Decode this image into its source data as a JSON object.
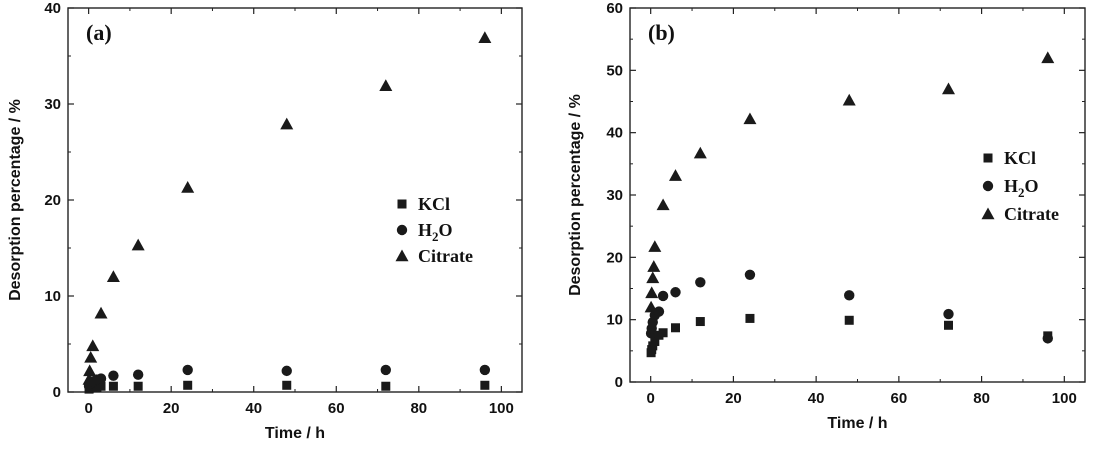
{
  "chart_data": [
    {
      "type": "scatter",
      "panel_label": "(a)",
      "xlabel": "Time / h",
      "ylabel": "Desorption percentage / %",
      "xlim": [
        -5,
        105
      ],
      "ylim": [
        0,
        40
      ],
      "xticks": [
        0,
        20,
        40,
        60,
        80,
        100
      ],
      "yticks": [
        0,
        10,
        20,
        30,
        40
      ],
      "legend_position": "right",
      "series": [
        {
          "name": "KCl",
          "sub": "",
          "after": "",
          "marker": "square",
          "points": [
            [
              0.1,
              0.3
            ],
            [
              0.25,
              0.4
            ],
            [
              0.5,
              0.5
            ],
            [
              1,
              0.5
            ],
            [
              2,
              0.5
            ],
            [
              3,
              0.6
            ],
            [
              6,
              0.6
            ],
            [
              12,
              0.6
            ],
            [
              24,
              0.7
            ],
            [
              48,
              0.7
            ],
            [
              72,
              0.6
            ],
            [
              96,
              0.7
            ]
          ]
        },
        {
          "name": "H",
          "sub": "2",
          "after": "O",
          "marker": "circle",
          "points": [
            [
              0.1,
              0.6
            ],
            [
              0.25,
              0.8
            ],
            [
              0.5,
              0.9
            ],
            [
              1,
              1.1
            ],
            [
              2,
              1.3
            ],
            [
              3,
              1.4
            ],
            [
              6,
              1.7
            ],
            [
              12,
              1.8
            ],
            [
              24,
              2.3
            ],
            [
              48,
              2.2
            ],
            [
              72,
              2.3
            ],
            [
              96,
              2.3
            ]
          ]
        },
        {
          "name": "Citrate",
          "sub": "",
          "after": "",
          "marker": "triangle",
          "points": [
            [
              0.1,
              1.3
            ],
            [
              0.25,
              2.2
            ],
            [
              0.5,
              3.6
            ],
            [
              1,
              4.8
            ],
            [
              3,
              8.2
            ],
            [
              6,
              12.0
            ],
            [
              12,
              15.3
            ],
            [
              24,
              21.3
            ],
            [
              48,
              27.9
            ],
            [
              72,
              31.9
            ],
            [
              96,
              36.9
            ]
          ]
        }
      ]
    },
    {
      "type": "scatter",
      "panel_label": "(b)",
      "xlabel": "Time / h",
      "ylabel": "Desorption percentage / %",
      "xlim": [
        -5,
        105
      ],
      "ylim": [
        0,
        60
      ],
      "xticks": [
        0,
        20,
        40,
        60,
        80,
        100
      ],
      "yticks": [
        0,
        10,
        20,
        30,
        40,
        50,
        60
      ],
      "legend_position": "right",
      "series": [
        {
          "name": "KCl",
          "sub": "",
          "after": "",
          "marker": "square",
          "points": [
            [
              0.1,
              4.7
            ],
            [
              0.25,
              5.2
            ],
            [
              0.5,
              5.8
            ],
            [
              1,
              6.5
            ],
            [
              2,
              7.5
            ],
            [
              3,
              7.9
            ],
            [
              6,
              8.7
            ],
            [
              12,
              9.7
            ],
            [
              24,
              10.2
            ],
            [
              48,
              9.9
            ],
            [
              72,
              9.1
            ],
            [
              96,
              7.4
            ]
          ]
        },
        {
          "name": "H",
          "sub": "2",
          "after": "O",
          "marker": "circle",
          "points": [
            [
              0.1,
              7.8
            ],
            [
              0.25,
              8.6
            ],
            [
              0.5,
              9.6
            ],
            [
              1,
              10.7
            ],
            [
              2,
              11.3
            ],
            [
              3,
              13.8
            ],
            [
              6,
              14.4
            ],
            [
              12,
              16.0
            ],
            [
              24,
              17.2
            ],
            [
              48,
              13.9
            ],
            [
              72,
              10.9
            ],
            [
              96,
              7.0
            ]
          ]
        },
        {
          "name": "Citrate",
          "sub": "",
          "after": "",
          "marker": "triangle",
          "points": [
            [
              0.1,
              12.0
            ],
            [
              0.25,
              14.3
            ],
            [
              0.5,
              16.7
            ],
            [
              0.75,
              18.5
            ],
            [
              1,
              21.7
            ],
            [
              3,
              28.4
            ],
            [
              6,
              33.1
            ],
            [
              12,
              36.7
            ],
            [
              24,
              42.2
            ],
            [
              48,
              45.2
            ],
            [
              72,
              47.0
            ],
            [
              96,
              52.0
            ]
          ]
        }
      ]
    }
  ]
}
